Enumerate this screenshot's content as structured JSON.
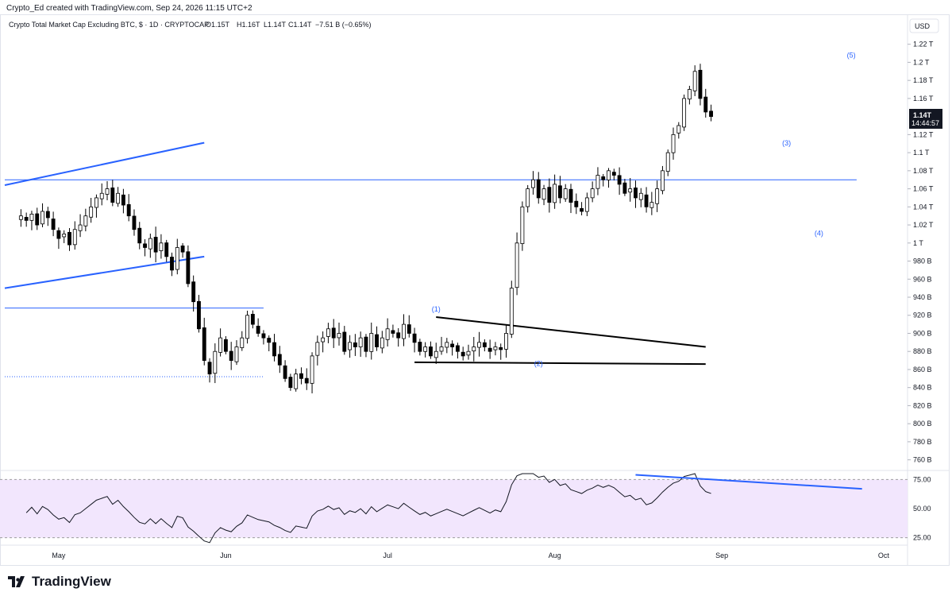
{
  "header": {
    "creator_line": "Crypto_Ed created with TradingView.com, Sep 24, 2026 11:15 UTC+2",
    "symbol_line": "Crypto Total Market Cap Excluding BTC, $ · 1D · CRYPTOCAP",
    "ohlc": {
      "open": "O1.15T",
      "high": "H1.16T",
      "low": "L1.14T",
      "close": "C1.14T",
      "change": "−7.51 B (−0.65%)"
    }
  },
  "currency_label": "USD",
  "price_badge": {
    "price": "1.14T",
    "countdown": "14:44:57"
  },
  "brand": {
    "name": "TradingView"
  },
  "colors": {
    "bull": "#ffffff",
    "bear": "#000000",
    "trend": "#2962ff",
    "rsi_line": "#131722",
    "rsi_band": "#f2e6fd"
  },
  "chart_data": [
    {
      "type": "candlestick",
      "title": "Crypto Total Market Cap Excluding BTC",
      "ylabel": "USD",
      "y_unit": "billions USD",
      "ylim": [
        750,
        1225
      ],
      "y_ticks": [
        {
          "v": 760,
          "label": "760 B"
        },
        {
          "v": 780,
          "label": "780 B"
        },
        {
          "v": 800,
          "label": "800 B"
        },
        {
          "v": 820,
          "label": "820 B"
        },
        {
          "v": 840,
          "label": "840 B"
        },
        {
          "v": 860,
          "label": "860 B"
        },
        {
          "v": 880,
          "label": "880 B"
        },
        {
          "v": 900,
          "label": "900 B"
        },
        {
          "v": 920,
          "label": "920 B"
        },
        {
          "v": 940,
          "label": "940 B"
        },
        {
          "v": 960,
          "label": "960 B"
        },
        {
          "v": 980,
          "label": "980 B"
        },
        {
          "v": 1000,
          "label": "1 T"
        },
        {
          "v": 1020,
          "label": "1.02 T"
        },
        {
          "v": 1040,
          "label": "1.04 T"
        },
        {
          "v": 1060,
          "label": "1.06 T"
        },
        {
          "v": 1080,
          "label": "1.08 T"
        },
        {
          "v": 1100,
          "label": "1.1 T"
        },
        {
          "v": 1120,
          "label": "1.12 T"
        },
        {
          "v": 1160,
          "label": "1.16 T"
        },
        {
          "v": 1180,
          "label": "1.18 T"
        },
        {
          "v": 1200,
          "label": "1.2 T"
        },
        {
          "v": 1220,
          "label": "1.22 T"
        }
      ],
      "x_ticks": [
        {
          "day": 0,
          "label": "May"
        },
        {
          "day": 31,
          "label": "Jun"
        },
        {
          "day": 61,
          "label": "Jul"
        },
        {
          "day": 92,
          "label": "Aug"
        },
        {
          "day": 123,
          "label": "Sep"
        },
        {
          "day": 153,
          "label": "Oct"
        }
      ],
      "x_range_days": [
        -10,
        157
      ],
      "close_series": [
        1030,
        1025,
        1032,
        1020,
        1035,
        1028,
        1015,
        1005,
        1010,
        998,
        1015,
        1020,
        1030,
        1040,
        1050,
        1055,
        1060,
        1045,
        1055,
        1042,
        1030,
        1015,
        1000,
        995,
        1005,
        990,
        1000,
        985,
        970,
        995,
        990,
        955,
        935,
        905,
        870,
        855,
        880,
        895,
        880,
        870,
        885,
        895,
        920,
        910,
        900,
        895,
        890,
        875,
        865,
        850,
        840,
        855,
        850,
        845,
        875,
        890,
        895,
        905,
        895,
        900,
        880,
        890,
        885,
        895,
        880,
        900,
        885,
        895,
        905,
        900,
        895,
        910,
        900,
        890,
        880,
        885,
        875,
        880,
        885,
        890,
        885,
        880,
        875,
        880,
        885,
        890,
        885,
        880,
        885,
        882,
        900,
        950,
        1000,
        1040,
        1060,
        1070,
        1050,
        1060,
        1045,
        1065,
        1050,
        1060,
        1045,
        1040,
        1035,
        1050,
        1060,
        1075,
        1070,
        1080,
        1075,
        1065,
        1055,
        1060,
        1050,
        1055,
        1040,
        1045,
        1060,
        1080,
        1100,
        1120,
        1130,
        1160,
        1170,
        1190,
        1160,
        1145,
        1140
      ],
      "annotations": [
        {
          "label": "(1)",
          "day": 70,
          "price": 924
        },
        {
          "label": "(2)",
          "day": 89,
          "price": 864
        },
        {
          "label": "(3)",
          "day": 135,
          "price": 1108
        },
        {
          "label": "(4)",
          "day": 141,
          "price": 1008
        },
        {
          "label": "(5)",
          "day": 147,
          "price": 1205
        }
      ],
      "trendlines": [
        {
          "name": "upper-channel",
          "from": [
            -10,
            1064
          ],
          "to": [
            27,
            1111
          ]
        },
        {
          "name": "lower-channel",
          "from": [
            -10,
            950
          ],
          "to": [
            27,
            985
          ]
        },
        {
          "name": "resistance",
          "from": [
            -10,
            1070
          ],
          "to": [
            148,
            1070
          ]
        },
        {
          "name": "support",
          "from": [
            -10,
            928
          ],
          "to": [
            38,
            928
          ]
        },
        {
          "name": "support-dotted",
          "from": [
            -10,
            852
          ],
          "to": [
            38,
            852
          ]
        },
        {
          "name": "triangle-top",
          "from": [
            70,
            918
          ],
          "to": [
            120,
            885
          ]
        },
        {
          "name": "triangle-bottom",
          "from": [
            66,
            868
          ],
          "to": [
            120,
            866
          ]
        }
      ]
    },
    {
      "type": "line",
      "title": "RSI",
      "ylim": [
        20,
        80
      ],
      "y_ticks": [
        {
          "v": 75,
          "label": "75.00"
        },
        {
          "v": 50,
          "label": "50.00"
        },
        {
          "v": 25,
          "label": "25.00"
        }
      ],
      "band": [
        25,
        75
      ],
      "divergence_line": {
        "from": [
          107,
          79
        ],
        "to": [
          149,
          67
        ]
      }
    }
  ]
}
